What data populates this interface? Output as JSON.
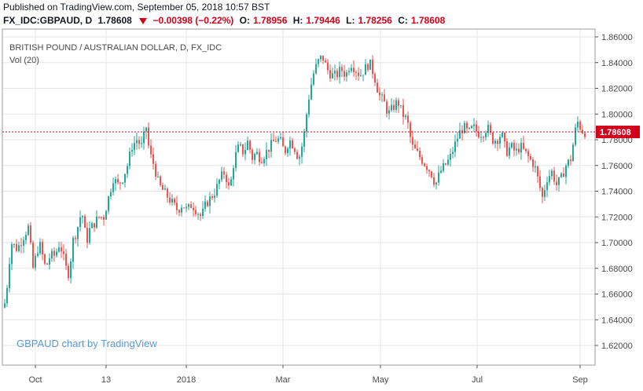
{
  "header": {
    "published": "Published on TradingView.com, September 05, 2018 10:57 BST",
    "symbol": "FX_IDC:GBPAUD, D",
    "last": "1.78608",
    "change": "−0.00398 (−0.22%)",
    "open_label": "O:",
    "open": "1.78956",
    "high_label": "H:",
    "high": "1.79446",
    "low_label": "L:",
    "low": "1.78256",
    "close_label": "C:",
    "close": "1.78608"
  },
  "chart_data": {
    "type": "candlestick",
    "title": "BRITISH POUND / AUSTRALIAN DOLLAR, D, FX_IDC",
    "indicator": "Vol (20)",
    "watermark": "GBPAUD chart by TradingView",
    "ylim": [
      1.61,
      1.865
    ],
    "y_ticks": [
      "1.86000",
      "1.84000",
      "1.82000",
      "1.80000",
      "1.78000",
      "1.76000",
      "1.74000",
      "1.72000",
      "1.70000",
      "1.68000",
      "1.66000",
      "1.64000",
      "1.62000"
    ],
    "x_ticks": [
      "Oct",
      "13",
      "2018",
      "Mar",
      "May",
      "Jul",
      "Sep"
    ],
    "last_price": "1.78608",
    "last_price_value": 1.78608,
    "grid": true,
    "colors": {
      "up": "#26a69a",
      "down": "#ef5350",
      "last_line": "#d0021b",
      "grid": "#e6e6e6",
      "axis": "#555555"
    },
    "close_path": [
      [
        0,
        1.632
      ],
      [
        8,
        1.66
      ],
      [
        14,
        1.7
      ],
      [
        22,
        1.695
      ],
      [
        30,
        1.705
      ],
      [
        36,
        1.712
      ],
      [
        42,
        1.68
      ],
      [
        50,
        1.7
      ],
      [
        58,
        1.68
      ],
      [
        64,
        1.69
      ],
      [
        70,
        1.69
      ],
      [
        76,
        1.7
      ],
      [
        84,
        1.68
      ],
      [
        88,
        1.675
      ],
      [
        92,
        1.7
      ],
      [
        98,
        1.71
      ],
      [
        104,
        1.725
      ],
      [
        110,
        1.7
      ],
      [
        114,
        1.71
      ],
      [
        120,
        1.715
      ],
      [
        126,
        1.72
      ],
      [
        132,
        1.72
      ],
      [
        138,
        1.735
      ],
      [
        144,
        1.75
      ],
      [
        150,
        1.745
      ],
      [
        156,
        1.75
      ],
      [
        162,
        1.76
      ],
      [
        168,
        1.775
      ],
      [
        174,
        1.78
      ],
      [
        180,
        1.775
      ],
      [
        186,
        1.79
      ],
      [
        190,
        1.77
      ],
      [
        196,
        1.76
      ],
      [
        202,
        1.745
      ],
      [
        208,
        1.74
      ],
      [
        214,
        1.735
      ],
      [
        220,
        1.73
      ],
      [
        226,
        1.725
      ],
      [
        232,
        1.73
      ],
      [
        238,
        1.725
      ],
      [
        244,
        1.73
      ],
      [
        250,
        1.725
      ],
      [
        256,
        1.72
      ],
      [
        262,
        1.73
      ],
      [
        268,
        1.735
      ],
      [
        274,
        1.74
      ],
      [
        280,
        1.75
      ],
      [
        286,
        1.755
      ],
      [
        292,
        1.74
      ],
      [
        298,
        1.765
      ],
      [
        304,
        1.775
      ],
      [
        310,
        1.77
      ],
      [
        316,
        1.78
      ],
      [
        320,
        1.765
      ],
      [
        326,
        1.77
      ],
      [
        332,
        1.765
      ],
      [
        338,
        1.77
      ],
      [
        344,
        1.775
      ],
      [
        350,
        1.78
      ],
      [
        356,
        1.78
      ],
      [
        362,
        1.77
      ],
      [
        368,
        1.78
      ],
      [
        374,
        1.775
      ],
      [
        380,
        1.765
      ],
      [
        386,
        1.78
      ],
      [
        392,
        1.81
      ],
      [
        398,
        1.83
      ],
      [
        404,
        1.84
      ],
      [
        410,
        1.845
      ],
      [
        416,
        1.835
      ],
      [
        422,
        1.83
      ],
      [
        428,
        1.83
      ],
      [
        434,
        1.835
      ],
      [
        440,
        1.83
      ],
      [
        446,
        1.84
      ],
      [
        452,
        1.835
      ],
      [
        458,
        1.83
      ],
      [
        464,
        1.835
      ],
      [
        470,
        1.84
      ],
      [
        476,
        1.83
      ],
      [
        482,
        1.815
      ],
      [
        488,
        1.81
      ],
      [
        494,
        1.8
      ],
      [
        500,
        1.805
      ],
      [
        506,
        1.81
      ],
      [
        512,
        1.8
      ],
      [
        518,
        1.795
      ],
      [
        524,
        1.775
      ],
      [
        530,
        1.77
      ],
      [
        536,
        1.765
      ],
      [
        542,
        1.76
      ],
      [
        548,
        1.755
      ],
      [
        554,
        1.745
      ],
      [
        560,
        1.755
      ],
      [
        566,
        1.76
      ],
      [
        572,
        1.765
      ],
      [
        578,
        1.775
      ],
      [
        584,
        1.785
      ],
      [
        590,
        1.79
      ],
      [
        596,
        1.785
      ],
      [
        602,
        1.79
      ],
      [
        608,
        1.785
      ],
      [
        614,
        1.785
      ],
      [
        620,
        1.79
      ],
      [
        626,
        1.78
      ],
      [
        632,
        1.78
      ],
      [
        638,
        1.785
      ],
      [
        644,
        1.77
      ],
      [
        650,
        1.775
      ],
      [
        656,
        1.77
      ],
      [
        662,
        1.775
      ],
      [
        668,
        1.77
      ],
      [
        674,
        1.765
      ],
      [
        680,
        1.76
      ],
      [
        686,
        1.745
      ],
      [
        690,
        1.735
      ],
      [
        696,
        1.75
      ],
      [
        702,
        1.755
      ],
      [
        708,
        1.745
      ],
      [
        714,
        1.75
      ],
      [
        720,
        1.76
      ],
      [
        726,
        1.765
      ],
      [
        730,
        1.78
      ],
      [
        734,
        1.795
      ],
      [
        738,
        1.79
      ],
      [
        742,
        1.786
      ]
    ]
  }
}
